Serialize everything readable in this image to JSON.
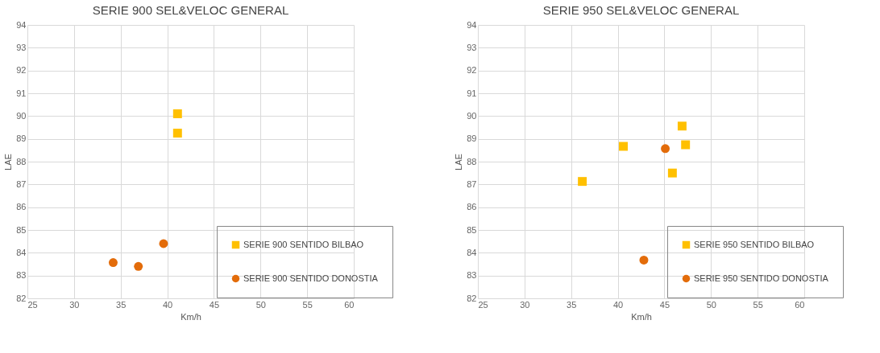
{
  "chart_data": [
    {
      "type": "scatter",
      "title": "SERIE 900 SEL&VELOC GENERAL",
      "xlabel": "Km/h",
      "ylabel": "LAE",
      "xlim": [
        25,
        60
      ],
      "xticks": [
        25,
        30,
        35,
        40,
        45,
        50,
        55,
        60
      ],
      "ylim": [
        82,
        94
      ],
      "yticks": [
        82,
        83,
        84,
        85,
        86,
        87,
        88,
        89,
        90,
        91,
        92,
        93,
        94
      ],
      "grid": true,
      "legend": "bottom right",
      "series": [
        {
          "name": "SERIE 900 SENTIDO BILBAO",
          "color": "#ffc000",
          "marker": "square",
          "x": [
            41.1,
            41.1
          ],
          "values": [
            90.1,
            89.25
          ]
        },
        {
          "name": "SERIE 900 SENTIDO DONOSTIA",
          "color": "#e36c0a",
          "marker": "circle",
          "x": [
            34.2,
            36.9,
            39.6
          ],
          "values": [
            83.57,
            83.4,
            84.4
          ]
        }
      ]
    },
    {
      "type": "scatter",
      "title": "SERIE 950 SEL&VELOC GENERAL",
      "xlabel": "Km/h",
      "ylabel": "LAE",
      "xlim": [
        25,
        60
      ],
      "xticks": [
        25,
        30,
        35,
        40,
        45,
        50,
        55,
        60
      ],
      "ylim": [
        82,
        94
      ],
      "yticks": [
        82,
        83,
        84,
        85,
        86,
        87,
        88,
        89,
        90,
        91,
        92,
        93,
        94
      ],
      "grid": true,
      "legend": "bottom right",
      "series": [
        {
          "name": "SERIE 950 SENTIDO BILBAO",
          "color": "#ffc000",
          "marker": "square",
          "x": [
            36.2,
            40.6,
            46.9,
            47.27,
            45.86
          ],
          "values": [
            87.13,
            88.67,
            89.56,
            88.74,
            87.5
          ]
        },
        {
          "name": "SERIE 950 SENTIDO DONOSTIA",
          "color": "#e36c0a",
          "marker": "circle",
          "x": [
            45.1,
            42.8
          ],
          "values": [
            88.57,
            83.68
          ]
        }
      ]
    }
  ]
}
